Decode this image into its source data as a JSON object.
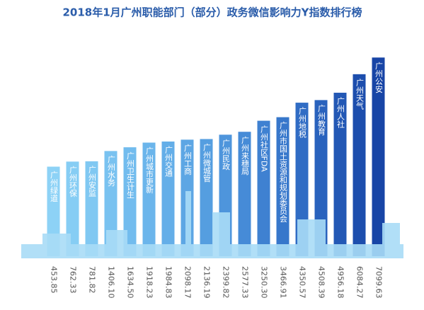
{
  "chart_data": {
    "type": "bar",
    "title": "2018年1月广州职能部门（部分）政务微信影响力Y指数排行榜",
    "categories": [
      "广州绿道",
      "广州环保",
      "广州安监",
      "广州水务",
      "广州卫生计生",
      "广州城市更新",
      "广州交通",
      "广州工商",
      "广州微城管",
      "广州民政",
      "广州来穗局",
      "广州社区FDA",
      "广州市国土资源和规划委员会",
      "广州地税",
      "广州教育",
      "广州人社",
      "广州天气",
      "广州公安"
    ],
    "values": [
      453.85,
      762.33,
      781.82,
      1406.1,
      1634.5,
      1918.23,
      1984.83,
      2098.17,
      2136.19,
      2399.82,
      2577.33,
      3250.3,
      3466.91,
      4350.57,
      4508.39,
      4956.18,
      6084.27,
      7099.63
    ],
    "value_labels": [
      "453.85",
      "762.33",
      "781.82",
      "1406.10",
      "1634.50",
      "1918.23",
      "1984.83",
      "2098.17",
      "2136.19",
      "2399.82",
      "2577.33",
      "3250.30",
      "3466.91",
      "4350.57",
      "4508.39",
      "4956.18",
      "6084.27",
      "7099.63"
    ],
    "colors": [
      "#8dd2f6",
      "#86cdf4",
      "#80c8f2",
      "#79c2f0",
      "#72bcee",
      "#6bb5eb",
      "#64aee8",
      "#5da6e4",
      "#559ee0",
      "#4e95dc",
      "#468bd7",
      "#3f81d1",
      "#3777cb",
      "#306cc4",
      "#2962bd",
      "#2358b5",
      "#1d4ead",
      "#1845a6"
    ],
    "ylim": [
      -5000,
      7500
    ]
  }
}
